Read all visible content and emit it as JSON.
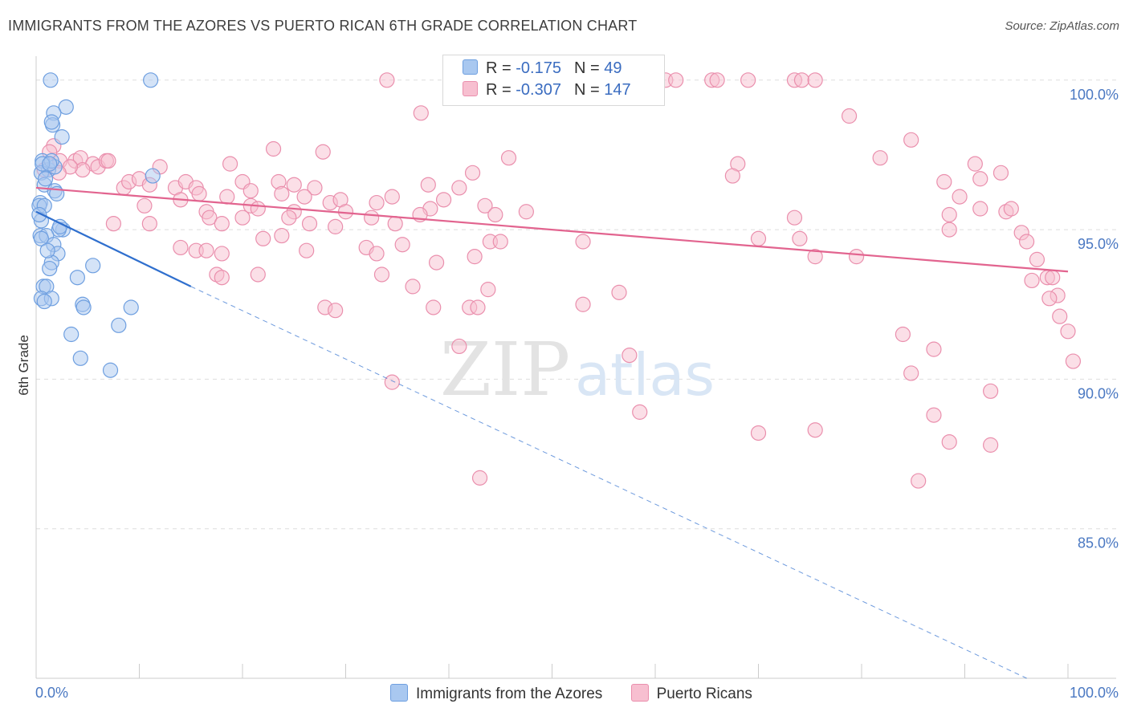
{
  "header": {
    "title": "IMMIGRANTS FROM THE AZORES VS PUERTO RICAN 6TH GRADE CORRELATION CHART",
    "source": "Source: ZipAtlas.com"
  },
  "watermark": {
    "zip": "ZIP",
    "atlas": "atlas"
  },
  "legend": {
    "rows": [
      {
        "r_label": "R = ",
        "r_value": "-0.175",
        "n_label": "N = ",
        "n_value": "49"
      },
      {
        "r_label": "R = ",
        "r_value": "-0.307",
        "n_label": "N = ",
        "n_value": "147"
      }
    ]
  },
  "colors": {
    "blue_fill": "#a9c8f0",
    "blue_stroke": "#6e9fe0",
    "blue_line": "#2f6fce",
    "pink_fill": "#f7bfd0",
    "pink_stroke": "#ea8fad",
    "pink_line": "#e2648f",
    "grid": "#dddddd",
    "axis_label": "#4a78c2"
  },
  "chart_data": {
    "type": "scatter",
    "title": "IMMIGRANTS FROM THE AZORES VS PUERTO RICAN 6TH GRADE CORRELATION CHART",
    "xlabel": "",
    "ylabel": "6th Grade",
    "xlim": [
      0,
      100
    ],
    "ylim": [
      80.0,
      100.8
    ],
    "x_tick_labels": [
      "0.0%",
      "100.0%"
    ],
    "y_ticks": [
      85.0,
      90.0,
      95.0,
      100.0
    ],
    "y_tick_labels": [
      "85.0%",
      "90.0%",
      "95.0%",
      "100.0%"
    ],
    "legend_position": "top-center",
    "series": [
      {
        "name": "Immigrants from the Azores",
        "R": -0.175,
        "N": 49,
        "trend": {
          "x0": 0,
          "y0": 95.6,
          "x1": 15,
          "y1": 93.1,
          "dash_to_x": 96,
          "dash_to_y": 80.0
        },
        "points": [
          [
            1.4,
            100.0
          ],
          [
            11.1,
            100.0
          ],
          [
            2.9,
            99.1
          ],
          [
            1.7,
            98.9
          ],
          [
            1.6,
            98.5
          ],
          [
            1.5,
            98.6
          ],
          [
            2.5,
            98.1
          ],
          [
            0.6,
            97.3
          ],
          [
            1.2,
            97.0
          ],
          [
            1.8,
            97.1
          ],
          [
            1.5,
            97.3
          ],
          [
            0.5,
            96.9
          ],
          [
            11.3,
            96.8
          ],
          [
            0.8,
            96.5
          ],
          [
            1.8,
            96.3
          ],
          [
            2.0,
            96.2
          ],
          [
            0.4,
            95.9
          ],
          [
            0.3,
            95.8
          ],
          [
            0.8,
            95.8
          ],
          [
            0.5,
            95.3
          ],
          [
            2.6,
            95.0
          ],
          [
            2.2,
            95.0
          ],
          [
            0.4,
            94.8
          ],
          [
            1.0,
            94.8
          ],
          [
            0.5,
            94.7
          ],
          [
            1.7,
            94.5
          ],
          [
            2.1,
            94.2
          ],
          [
            1.5,
            93.9
          ],
          [
            1.3,
            93.7
          ],
          [
            5.5,
            93.8
          ],
          [
            4.0,
            93.4
          ],
          [
            0.7,
            93.1
          ],
          [
            1.0,
            93.1
          ],
          [
            0.5,
            92.7
          ],
          [
            1.5,
            92.7
          ],
          [
            0.8,
            92.6
          ],
          [
            4.5,
            92.5
          ],
          [
            4.6,
            92.4
          ],
          [
            9.2,
            92.4
          ],
          [
            8.0,
            91.8
          ],
          [
            3.4,
            91.5
          ],
          [
            4.3,
            90.7
          ],
          [
            7.2,
            90.3
          ],
          [
            0.6,
            97.2
          ],
          [
            1.3,
            97.2
          ],
          [
            0.9,
            96.7
          ],
          [
            2.3,
            95.1
          ],
          [
            0.3,
            95.5
          ],
          [
            1.1,
            94.3
          ]
        ]
      },
      {
        "name": "Puerto Ricans",
        "R": -0.307,
        "N": 147,
        "trend": {
          "x0": 0,
          "y0": 96.4,
          "x1": 100,
          "y1": 93.6
        },
        "points": [
          [
            34.0,
            100.0
          ],
          [
            49.0,
            100.0
          ],
          [
            61.0,
            100.0
          ],
          [
            62.0,
            100.0
          ],
          [
            65.5,
            100.0
          ],
          [
            66.0,
            100.0
          ],
          [
            69.0,
            100.0
          ],
          [
            73.5,
            100.0
          ],
          [
            74.2,
            100.0
          ],
          [
            75.5,
            100.0
          ],
          [
            37.3,
            98.9
          ],
          [
            78.8,
            98.8
          ],
          [
            84.8,
            98.0
          ],
          [
            1.7,
            97.8
          ],
          [
            23.0,
            97.7
          ],
          [
            27.8,
            97.6
          ],
          [
            45.8,
            97.4
          ],
          [
            81.8,
            97.4
          ],
          [
            1.3,
            97.6
          ],
          [
            2.3,
            97.3
          ],
          [
            3.8,
            97.3
          ],
          [
            4.3,
            97.4
          ],
          [
            5.5,
            97.2
          ],
          [
            6.0,
            97.1
          ],
          [
            6.8,
            97.3
          ],
          [
            7.0,
            97.3
          ],
          [
            18.8,
            97.2
          ],
          [
            12.0,
            97.1
          ],
          [
            68.0,
            97.2
          ],
          [
            91.0,
            97.2
          ],
          [
            4.5,
            97.0
          ],
          [
            3.3,
            97.1
          ],
          [
            0.8,
            97.0
          ],
          [
            2.2,
            96.9
          ],
          [
            42.3,
            96.9
          ],
          [
            67.5,
            96.8
          ],
          [
            93.5,
            96.9
          ],
          [
            88.0,
            96.6
          ],
          [
            91.5,
            96.7
          ],
          [
            20.0,
            96.6
          ],
          [
            8.5,
            96.4
          ],
          [
            9.0,
            96.6
          ],
          [
            10.0,
            96.7
          ],
          [
            11.0,
            96.5
          ],
          [
            13.5,
            96.4
          ],
          [
            14.5,
            96.6
          ],
          [
            15.5,
            96.4
          ],
          [
            23.5,
            96.6
          ],
          [
            25.0,
            96.5
          ],
          [
            27.0,
            96.4
          ],
          [
            38.0,
            96.5
          ],
          [
            41.0,
            96.4
          ],
          [
            20.8,
            96.3
          ],
          [
            15.8,
            96.2
          ],
          [
            18.5,
            96.1
          ],
          [
            23.8,
            96.2
          ],
          [
            26.0,
            96.1
          ],
          [
            34.5,
            96.1
          ],
          [
            39.5,
            96.0
          ],
          [
            28.5,
            95.9
          ],
          [
            29.5,
            96.0
          ],
          [
            89.5,
            96.1
          ],
          [
            14.0,
            96.0
          ],
          [
            20.8,
            95.8
          ],
          [
            16.5,
            95.6
          ],
          [
            16.8,
            95.4
          ],
          [
            21.5,
            95.7
          ],
          [
            25.0,
            95.6
          ],
          [
            30.0,
            95.6
          ],
          [
            33.0,
            95.9
          ],
          [
            32.5,
            95.4
          ],
          [
            38.2,
            95.7
          ],
          [
            37.2,
            95.5
          ],
          [
            43.5,
            95.8
          ],
          [
            47.5,
            95.6
          ],
          [
            73.5,
            95.4
          ],
          [
            88.5,
            95.5
          ],
          [
            91.5,
            95.7
          ],
          [
            94.0,
            95.6
          ],
          [
            94.5,
            95.7
          ],
          [
            7.5,
            95.2
          ],
          [
            10.5,
            95.8
          ],
          [
            11.0,
            95.2
          ],
          [
            18.0,
            95.2
          ],
          [
            20.0,
            95.4
          ],
          [
            24.5,
            95.4
          ],
          [
            26.5,
            95.2
          ],
          [
            29.0,
            95.1
          ],
          [
            34.8,
            95.2
          ],
          [
            44.5,
            95.5
          ],
          [
            88.5,
            95.0
          ],
          [
            95.5,
            94.9
          ],
          [
            22.0,
            94.7
          ],
          [
            23.8,
            94.8
          ],
          [
            32.0,
            94.4
          ],
          [
            35.5,
            94.5
          ],
          [
            44.0,
            94.6
          ],
          [
            45.0,
            94.6
          ],
          [
            53.0,
            94.6
          ],
          [
            70.0,
            94.7
          ],
          [
            74.0,
            94.7
          ],
          [
            96.0,
            94.6
          ],
          [
            14.0,
            94.4
          ],
          [
            15.5,
            94.3
          ],
          [
            16.5,
            94.3
          ],
          [
            18.0,
            94.2
          ],
          [
            26.2,
            94.3
          ],
          [
            33.0,
            94.2
          ],
          [
            38.8,
            93.9
          ],
          [
            42.5,
            94.1
          ],
          [
            75.5,
            94.1
          ],
          [
            79.5,
            94.1
          ],
          [
            97.0,
            94.0
          ],
          [
            17.5,
            93.5
          ],
          [
            18.0,
            93.4
          ],
          [
            21.5,
            93.5
          ],
          [
            33.5,
            93.5
          ],
          [
            36.5,
            93.1
          ],
          [
            43.8,
            93.0
          ],
          [
            56.5,
            92.9
          ],
          [
            98.0,
            93.4
          ],
          [
            98.5,
            93.4
          ],
          [
            99.0,
            92.8
          ],
          [
            96.5,
            93.3
          ],
          [
            28.0,
            92.4
          ],
          [
            29.0,
            92.3
          ],
          [
            38.5,
            92.4
          ],
          [
            42.0,
            92.4
          ],
          [
            42.8,
            92.4
          ],
          [
            53.0,
            92.5
          ],
          [
            98.2,
            92.7
          ],
          [
            99.2,
            92.1
          ],
          [
            100.0,
            91.6
          ],
          [
            84.0,
            91.5
          ],
          [
            41.0,
            91.1
          ],
          [
            57.5,
            90.8
          ],
          [
            87.0,
            91.0
          ],
          [
            100.5,
            90.6
          ],
          [
            84.8,
            90.2
          ],
          [
            34.5,
            89.9
          ],
          [
            92.5,
            89.6
          ],
          [
            58.5,
            88.9
          ],
          [
            87.0,
            88.8
          ],
          [
            70.0,
            88.2
          ],
          [
            75.5,
            88.3
          ],
          [
            88.5,
            87.9
          ],
          [
            92.5,
            87.8
          ],
          [
            43.0,
            86.7
          ],
          [
            85.5,
            86.6
          ]
        ]
      }
    ]
  },
  "bottom_legend": [
    {
      "label": "Immigrants from the Azores"
    },
    {
      "label": "Puerto Ricans"
    }
  ]
}
